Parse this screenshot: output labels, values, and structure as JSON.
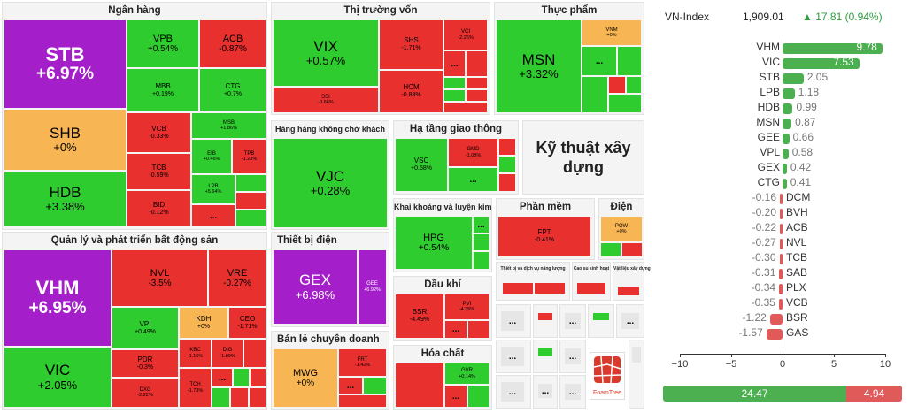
{
  "sectors": {
    "bank": "Ngân hàng",
    "capital": "Thị trường vốn",
    "food": "Thực phẩm",
    "airline": "Hàng hàng không chở khách",
    "infra": "Hạ tầng giao thông",
    "tech": "Kỹ thuật xây dựng",
    "mining": "Khai khoáng và luyện kim",
    "software": "Phần mềm",
    "power": "Điện",
    "realestate": "Quản lý và phát triển bất động sản",
    "equip": "Thiết bị điện",
    "oil": "Dầu khí",
    "retail": "Bán lẻ chuyên doanh",
    "chem": "Hóa chất",
    "itservice": "Thiết bị và dịch vụ năng lượng",
    "seafood": "Cao su sinh hoạt",
    "materials": "Vật liệu xây dựng"
  },
  "tiles": {
    "STB": "STB",
    "STBv": "+6.97%",
    "SHB": "SHB",
    "SHBv": "+0%",
    "HDB": "HDB",
    "HDBv": "+3.38%",
    "VPB": "VPB",
    "VPBv": "+0.54%",
    "ACB": "ACB",
    "ACBv": "-0.87%",
    "MBB": "MBB",
    "MBBv": "+0.19%",
    "CTG": "CTG",
    "CTGv": "+0.7%",
    "VCB": "VCB",
    "VCBv": "-0.33%",
    "MSB": "MSB",
    "MSBv": "+1.86%",
    "TCB": "TCB",
    "TCBv": "-0.59%",
    "EIB": "EIB",
    "EIBv": "+0.46%",
    "TPB": "TPB",
    "TPBv": "-1.23%",
    "BID": "BID",
    "BIDv": "-0.12%",
    "LPB": "LPB",
    "LPBv": "+5.64%",
    "VIX": "VIX",
    "VIXv": "+0.57%",
    "SHS": "SHS",
    "SHSv": "-1.71%",
    "VCI": "VCI",
    "VCIv": "-2.26%",
    "SSI": "SSI",
    "SSIv": "-0.66%",
    "HCM": "HCM",
    "HCMv": "-0.88%",
    "MSN": "MSN",
    "MSNv": "+3.32%",
    "VNM": "VNM",
    "VNMv": "+0%",
    "VJC": "VJC",
    "VJCv": "+0.28%",
    "VSC": "VSC",
    "VSCv": "+0.68%",
    "GMD": "GMD",
    "GMDv": "-1.08%",
    "HPG": "HPG",
    "HPGv": "+0.54%",
    "FPT": "FPT",
    "FPTv": "-0.41%",
    "POW": "POW",
    "POWv": "+0%",
    "VHM": "VHM",
    "VHMv": "+6.95%",
    "VIC": "VIC",
    "VICv": "+2.05%",
    "NVL": "NVL",
    "NVLv": "-3.5%",
    "VRE": "VRE",
    "VREv": "-0.27%",
    "VPI": "VPI",
    "VPIv": "+0.49%",
    "KDH": "KDH",
    "KDHv": "+0%",
    "CEO": "CEO",
    "CEOv": "-1.71%",
    "PDR": "PDR",
    "PDRv": "-0.3%",
    "KBC": "KBC",
    "KBCv": "-1.16%",
    "DIG": "DIG",
    "DIGv": "-1.89%",
    "DXG": "DXG",
    "DXGv": "-2.22%",
    "TCH": "TCH",
    "TCHv": "-1.73%",
    "GEX": "GEX",
    "GEXv": "+6.98%",
    "GEE": "GEE",
    "GEEv": "+6.92%",
    "BSR": "BSR",
    "BSRv": "-4.49%",
    "PVI": "PVI",
    "PVIv": "-4.35%",
    "MWG": "MWG",
    "MWGv": "+0%",
    "FRT": "FRT",
    "FRTv": "-1.42%",
    "GVR": "GVR",
    "GVRv": "+0.14%",
    "dots": "..."
  },
  "tech_label": "Kỹ thuật xây dựng",
  "vnindex": {
    "name": "VN-Index",
    "value": "1,909.01",
    "change": "▲  17.81 (0.94%)"
  },
  "contrib": [
    {
      "name": "VHM",
      "value": "9.78"
    },
    {
      "name": "VIC",
      "value": "7.53"
    },
    {
      "name": "STB",
      "value": "2.05"
    },
    {
      "name": "LPB",
      "value": "1.18"
    },
    {
      "name": "HDB",
      "value": "0.99"
    },
    {
      "name": "MSN",
      "value": "0.87"
    },
    {
      "name": "GEE",
      "value": "0.66"
    },
    {
      "name": "VPL",
      "value": "0.58"
    },
    {
      "name": "GEX",
      "value": "0.42"
    },
    {
      "name": "CTG",
      "value": "0.41"
    },
    {
      "name": "DCM",
      "value": "-0.16"
    },
    {
      "name": "BVH",
      "value": "-0.20"
    },
    {
      "name": "ACB",
      "value": "-0.22"
    },
    {
      "name": "NVL",
      "value": "-0.27"
    },
    {
      "name": "TCB",
      "value": "-0.30"
    },
    {
      "name": "SAB",
      "value": "-0.31"
    },
    {
      "name": "PLX",
      "value": "-0.34"
    },
    {
      "name": "VCB",
      "value": "-0.35"
    },
    {
      "name": "BSR",
      "value": "-1.22"
    },
    {
      "name": "GAS",
      "value": "-1.57"
    }
  ],
  "axis_ticks": [
    "−10",
    "−5",
    "0",
    "5",
    "10"
  ],
  "breadth": {
    "up": "24.47",
    "down": "4.94"
  },
  "logo": "FoamTree",
  "colors": {
    "up": "#2ecc2e",
    "down": "#e8302f",
    "ceiling": "#a41fc9",
    "flat": "#f7b553",
    "pos_bar": "#4caf50",
    "neg_bar": "#e05a5a"
  }
}
